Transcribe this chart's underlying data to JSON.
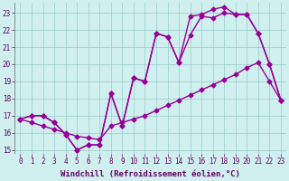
{
  "xlabel": "Windchill (Refroidissement éolien,°C)",
  "bg_color": "#cff0ee",
  "line_color": "#990099",
  "grid_color": "#99cccc",
  "xlim": [
    -0.5,
    23.5
  ],
  "ylim": [
    14.8,
    23.6
  ],
  "yticks": [
    15,
    16,
    17,
    18,
    19,
    20,
    21,
    22,
    23
  ],
  "xticks": [
    0,
    1,
    2,
    3,
    4,
    5,
    6,
    7,
    8,
    9,
    10,
    11,
    12,
    13,
    14,
    15,
    16,
    17,
    18,
    19,
    20,
    21,
    22,
    23
  ],
  "line1_x": [
    0,
    1,
    2,
    3,
    4,
    5,
    6,
    7,
    8,
    9,
    10,
    11,
    12,
    13,
    14,
    15,
    16,
    17,
    18,
    19,
    20,
    21,
    22,
    23
  ],
  "line1_y": [
    16.8,
    17.0,
    17.0,
    16.6,
    15.9,
    15.0,
    15.3,
    15.3,
    18.3,
    16.4,
    19.2,
    19.0,
    21.8,
    21.6,
    20.1,
    21.7,
    22.8,
    22.7,
    23.0,
    22.9,
    22.9,
    21.8,
    20.0,
    17.9
  ],
  "line2_x": [
    0,
    1,
    2,
    3,
    4,
    5,
    6,
    7,
    8,
    9,
    10,
    11,
    12,
    13,
    14,
    15,
    16,
    17,
    18,
    19,
    20,
    21,
    22,
    23
  ],
  "line2_y": [
    16.8,
    17.0,
    17.0,
    16.6,
    15.9,
    15.0,
    15.3,
    15.3,
    18.3,
    16.4,
    19.2,
    19.0,
    21.8,
    21.6,
    20.1,
    22.8,
    22.9,
    23.2,
    23.35,
    22.9,
    22.9,
    21.8,
    20.0,
    17.9
  ],
  "line3_x": [
    0,
    1,
    2,
    3,
    4,
    5,
    6,
    7,
    8,
    9,
    10,
    11,
    12,
    13,
    14,
    15,
    16,
    17,
    18,
    19,
    20,
    21,
    22,
    23
  ],
  "line3_y": [
    16.8,
    16.6,
    16.4,
    16.2,
    16.0,
    15.8,
    15.7,
    15.6,
    16.4,
    16.6,
    16.8,
    17.0,
    17.3,
    17.6,
    17.9,
    18.2,
    18.5,
    18.8,
    19.1,
    19.4,
    19.8,
    20.1,
    19.0,
    17.9
  ],
  "marker": "D",
  "markersize": 2.5,
  "linewidth": 1.0,
  "tick_fontsize": 5.5,
  "label_fontsize": 6.5
}
